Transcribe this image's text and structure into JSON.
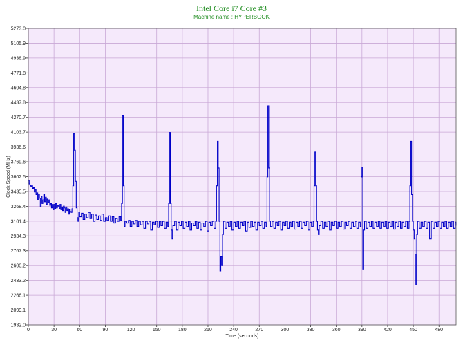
{
  "chart_data": {
    "type": "line",
    "title": "Intel Core i7 Core #3",
    "subtitle": "Machine name : HYPERBOOK",
    "xlabel": "Time (seconds)",
    "ylabel": "Clock Speed (MHz)",
    "xlim": [
      0,
      500
    ],
    "ylim": [
      1932.0,
      5273.0
    ],
    "x_ticks": [
      0,
      30,
      60,
      90,
      120,
      150,
      180,
      210,
      240,
      270,
      300,
      330,
      360,
      390,
      420,
      450,
      480
    ],
    "y_ticks": [
      "1932.0",
      "2099.1",
      "2266.1",
      "2433.2",
      "2600.2",
      "2767.3",
      "2934.3",
      "3101.4",
      "3268.4",
      "3435.5",
      "3602.5",
      "3769.6",
      "3936.6",
      "4103.7",
      "4270.7",
      "4437.8",
      "4604.8",
      "4771.8",
      "4938.9",
      "5105.9",
      "5273.0"
    ],
    "grid": true,
    "plot_bg": "#f5e9fb",
    "grid_color": "#c9a8d6",
    "line_color": "#0000c8",
    "series": [
      {
        "values": [
          [
            0,
            3560
          ],
          [
            1,
            3520
          ],
          [
            2,
            3505
          ],
          [
            3,
            3490
          ],
          [
            4,
            3500
          ],
          [
            5,
            3470
          ],
          [
            6,
            3480
          ],
          [
            7,
            3430
          ],
          [
            8,
            3460
          ],
          [
            9,
            3400
          ],
          [
            10,
            3420
          ],
          [
            11,
            3340
          ],
          [
            12,
            3400
          ],
          [
            13,
            3360
          ],
          [
            14,
            3260
          ],
          [
            15,
            3380
          ],
          [
            16,
            3300
          ],
          [
            17,
            3340
          ],
          [
            18,
            3400
          ],
          [
            19,
            3320
          ],
          [
            20,
            3370
          ],
          [
            21,
            3290
          ],
          [
            22,
            3350
          ],
          [
            23,
            3310
          ],
          [
            24,
            3340
          ],
          [
            25,
            3280
          ],
          [
            26,
            3300
          ],
          [
            27,
            3250
          ],
          [
            28,
            3290
          ],
          [
            29,
            3230
          ],
          [
            30,
            3290
          ],
          [
            31,
            3240
          ],
          [
            32,
            3300
          ],
          [
            33,
            3250
          ],
          [
            34,
            3280
          ],
          [
            35,
            3270
          ],
          [
            36,
            3240
          ],
          [
            37,
            3290
          ],
          [
            38,
            3230
          ],
          [
            39,
            3260
          ],
          [
            40,
            3220
          ],
          [
            41,
            3270
          ],
          [
            42,
            3250
          ],
          [
            43,
            3200
          ],
          [
            44,
            3260
          ],
          [
            45,
            3220
          ],
          [
            46,
            3240
          ],
          [
            47,
            3180
          ],
          [
            48,
            3230
          ],
          [
            49,
            3210
          ],
          [
            50,
            3200
          ],
          [
            51,
            3240
          ],
          [
            52,
            3500
          ],
          [
            53,
            4090
          ],
          [
            54,
            3900
          ],
          [
            55,
            3550
          ],
          [
            56,
            3250
          ],
          [
            57,
            3140
          ],
          [
            58,
            3100
          ],
          [
            59,
            3200
          ],
          [
            60,
            3150
          ],
          [
            62,
            3190
          ],
          [
            64,
            3120
          ],
          [
            66,
            3180
          ],
          [
            68,
            3140
          ],
          [
            70,
            3200
          ],
          [
            72,
            3130
          ],
          [
            74,
            3180
          ],
          [
            76,
            3100
          ],
          [
            78,
            3170
          ],
          [
            80,
            3120
          ],
          [
            82,
            3160
          ],
          [
            84,
            3110
          ],
          [
            86,
            3180
          ],
          [
            88,
            3100
          ],
          [
            90,
            3140
          ],
          [
            92,
            3110
          ],
          [
            94,
            3160
          ],
          [
            96,
            3100
          ],
          [
            98,
            3150
          ],
          [
            100,
            3080
          ],
          [
            102,
            3130
          ],
          [
            104,
            3100
          ],
          [
            106,
            3150
          ],
          [
            108,
            3110
          ],
          [
            109,
            3300
          ],
          [
            110,
            4290
          ],
          [
            111,
            3500
          ],
          [
            112,
            3040
          ],
          [
            113,
            3100
          ],
          [
            115,
            3080
          ],
          [
            117,
            3110
          ],
          [
            119,
            3040
          ],
          [
            121,
            3100
          ],
          [
            123,
            3070
          ],
          [
            125,
            3110
          ],
          [
            127,
            3040
          ],
          [
            129,
            3100
          ],
          [
            131,
            3060
          ],
          [
            133,
            3100
          ],
          [
            135,
            3020
          ],
          [
            137,
            3100
          ],
          [
            139,
            3070
          ],
          [
            141,
            3100
          ],
          [
            143,
            3000
          ],
          [
            145,
            3090
          ],
          [
            147,
            3060
          ],
          [
            149,
            3100
          ],
          [
            151,
            3030
          ],
          [
            153,
            3100
          ],
          [
            155,
            3050
          ],
          [
            157,
            3100
          ],
          [
            159,
            3020
          ],
          [
            161,
            3090
          ],
          [
            163,
            3040
          ],
          [
            164,
            3300
          ],
          [
            165,
            4100
          ],
          [
            166,
            3300
          ],
          [
            167,
            3000
          ],
          [
            168,
            2900
          ],
          [
            169,
            3050
          ],
          [
            171,
            3100
          ],
          [
            173,
            3000
          ],
          [
            175,
            3090
          ],
          [
            177,
            3050
          ],
          [
            179,
            3100
          ],
          [
            181,
            3020
          ],
          [
            183,
            3090
          ],
          [
            185,
            3040
          ],
          [
            187,
            3100
          ],
          [
            189,
            3000
          ],
          [
            191,
            3080
          ],
          [
            193,
            3050
          ],
          [
            195,
            3100
          ],
          [
            197,
            3020
          ],
          [
            199,
            3090
          ],
          [
            201,
            3000
          ],
          [
            203,
            3080
          ],
          [
            205,
            3040
          ],
          [
            207,
            3100
          ],
          [
            209,
            2990
          ],
          [
            211,
            3090
          ],
          [
            213,
            3050
          ],
          [
            215,
            3100
          ],
          [
            217,
            3020
          ],
          [
            219,
            3100
          ],
          [
            220,
            3500
          ],
          [
            221,
            4000
          ],
          [
            222,
            3700
          ],
          [
            223,
            3100
          ],
          [
            224,
            2540
          ],
          [
            225,
            2700
          ],
          [
            226,
            2600
          ],
          [
            227,
            2950
          ],
          [
            228,
            3100
          ],
          [
            230,
            3020
          ],
          [
            232,
            3090
          ],
          [
            234,
            3040
          ],
          [
            236,
            3100
          ],
          [
            238,
            3000
          ],
          [
            240,
            3090
          ],
          [
            242,
            3040
          ],
          [
            244,
            3100
          ],
          [
            246,
            3020
          ],
          [
            248,
            3090
          ],
          [
            250,
            3050
          ],
          [
            252,
            3100
          ],
          [
            254,
            2990
          ],
          [
            256,
            3090
          ],
          [
            258,
            3030
          ],
          [
            260,
            3100
          ],
          [
            262,
            3040
          ],
          [
            264,
            3090
          ],
          [
            266,
            3000
          ],
          [
            268,
            3090
          ],
          [
            270,
            3050
          ],
          [
            272,
            3100
          ],
          [
            274,
            3020
          ],
          [
            276,
            3090
          ],
          [
            278,
            3040
          ],
          [
            279,
            3600
          ],
          [
            280,
            4400
          ],
          [
            281,
            3700
          ],
          [
            282,
            3100
          ],
          [
            283,
            3040
          ],
          [
            285,
            3100
          ],
          [
            287,
            3020
          ],
          [
            289,
            3090
          ],
          [
            291,
            3050
          ],
          [
            293,
            3100
          ],
          [
            295,
            3000
          ],
          [
            297,
            3090
          ],
          [
            299,
            3050
          ],
          [
            301,
            3100
          ],
          [
            303,
            3020
          ],
          [
            305,
            3090
          ],
          [
            307,
            3040
          ],
          [
            309,
            3100
          ],
          [
            311,
            3010
          ],
          [
            313,
            3090
          ],
          [
            315,
            3040
          ],
          [
            317,
            3100
          ],
          [
            319,
            3020
          ],
          [
            321,
            3090
          ],
          [
            323,
            3050
          ],
          [
            325,
            3100
          ],
          [
            327,
            3000
          ],
          [
            329,
            3090
          ],
          [
            331,
            3040
          ],
          [
            333,
            3100
          ],
          [
            334,
            3500
          ],
          [
            335,
            3880
          ],
          [
            336,
            3500
          ],
          [
            337,
            3100
          ],
          [
            338,
            3000
          ],
          [
            339,
            2950
          ],
          [
            340,
            3050
          ],
          [
            342,
            3100
          ],
          [
            344,
            3020
          ],
          [
            346,
            3090
          ],
          [
            348,
            3040
          ],
          [
            350,
            3100
          ],
          [
            352,
            3000
          ],
          [
            354,
            3090
          ],
          [
            356,
            3050
          ],
          [
            358,
            3100
          ],
          [
            360,
            3020
          ],
          [
            362,
            3090
          ],
          [
            364,
            3040
          ],
          [
            366,
            3100
          ],
          [
            368,
            3010
          ],
          [
            370,
            3090
          ],
          [
            372,
            3050
          ],
          [
            374,
            3100
          ],
          [
            376,
            3020
          ],
          [
            378,
            3090
          ],
          [
            380,
            3040
          ],
          [
            382,
            3100
          ],
          [
            384,
            3020
          ],
          [
            386,
            3090
          ],
          [
            388,
            3040
          ],
          [
            389,
            3600
          ],
          [
            390,
            3710
          ],
          [
            391,
            2560
          ],
          [
            392,
            3000
          ],
          [
            393,
            3100
          ],
          [
            395,
            3020
          ],
          [
            397,
            3090
          ],
          [
            399,
            3040
          ],
          [
            401,
            3100
          ],
          [
            403,
            3020
          ],
          [
            405,
            3090
          ],
          [
            407,
            3040
          ],
          [
            409,
            3100
          ],
          [
            411,
            3020
          ],
          [
            413,
            3090
          ],
          [
            415,
            3040
          ],
          [
            417,
            3100
          ],
          [
            419,
            3020
          ],
          [
            421,
            3090
          ],
          [
            423,
            3040
          ],
          [
            425,
            3100
          ],
          [
            427,
            3010
          ],
          [
            429,
            3090
          ],
          [
            431,
            3040
          ],
          [
            433,
            3100
          ],
          [
            435,
            3020
          ],
          [
            437,
            3090
          ],
          [
            439,
            3040
          ],
          [
            441,
            3100
          ],
          [
            443,
            3020
          ],
          [
            445,
            3100
          ],
          [
            446,
            3500
          ],
          [
            447,
            4000
          ],
          [
            448,
            3400
          ],
          [
            449,
            3100
          ],
          [
            450,
            3000
          ],
          [
            451,
            2900
          ],
          [
            452,
            2730
          ],
          [
            453,
            2380
          ],
          [
            454,
            2950
          ],
          [
            455,
            3100
          ],
          [
            457,
            3020
          ],
          [
            459,
            3090
          ],
          [
            461,
            3040
          ],
          [
            463,
            3100
          ],
          [
            465,
            3020
          ],
          [
            467,
            3090
          ],
          [
            469,
            2900
          ],
          [
            471,
            3100
          ],
          [
            473,
            3020
          ],
          [
            475,
            3090
          ],
          [
            477,
            3040
          ],
          [
            479,
            3100
          ],
          [
            481,
            3020
          ],
          [
            483,
            3090
          ],
          [
            485,
            3040
          ],
          [
            487,
            3100
          ],
          [
            489,
            3020
          ],
          [
            491,
            3090
          ],
          [
            493,
            3040
          ],
          [
            495,
            3100
          ],
          [
            497,
            3020
          ],
          [
            499,
            3090
          ],
          [
            500,
            3050
          ]
        ]
      }
    ]
  }
}
